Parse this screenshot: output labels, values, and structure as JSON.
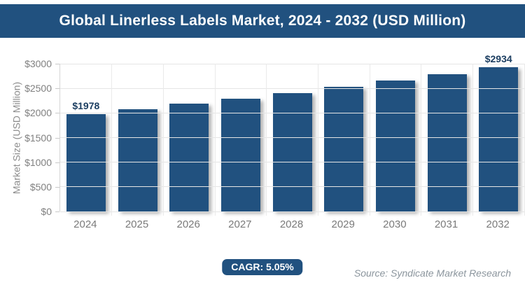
{
  "header": {
    "title": "Global Linerless Labels Market, 2024 - 2032 (USD Million)"
  },
  "chart_data": {
    "type": "bar",
    "title": "Global Linerless Labels Market, 2024 - 2032 (USD Million)",
    "categories": [
      "2024",
      "2025",
      "2026",
      "2027",
      "2028",
      "2029",
      "2030",
      "2031",
      "2032"
    ],
    "values": [
      1978,
      2078,
      2183,
      2293,
      2409,
      2531,
      2659,
      2793,
      2934
    ],
    "data_labels": [
      "$1978",
      "",
      "",
      "",
      "",
      "",
      "",
      "",
      "$2934"
    ],
    "xlabel": "",
    "ylabel": "Market Size (USD Million)",
    "ylim": [
      0,
      3000
    ],
    "ytick_values": [
      0,
      500,
      1000,
      1500,
      2000,
      2500,
      3000
    ],
    "yticks": [
      "$0",
      "$500",
      "$1000",
      "$1500",
      "$2000",
      "$2500",
      "$3000"
    ],
    "grid": true,
    "legend_position": "none",
    "bar_color": "#21517F",
    "data_label_color": "#1C3E61",
    "cagr": "5.05%"
  },
  "footer": {
    "cagr_label": "CAGR: 5.05%",
    "source": "Source: Syndicate Market Research"
  }
}
